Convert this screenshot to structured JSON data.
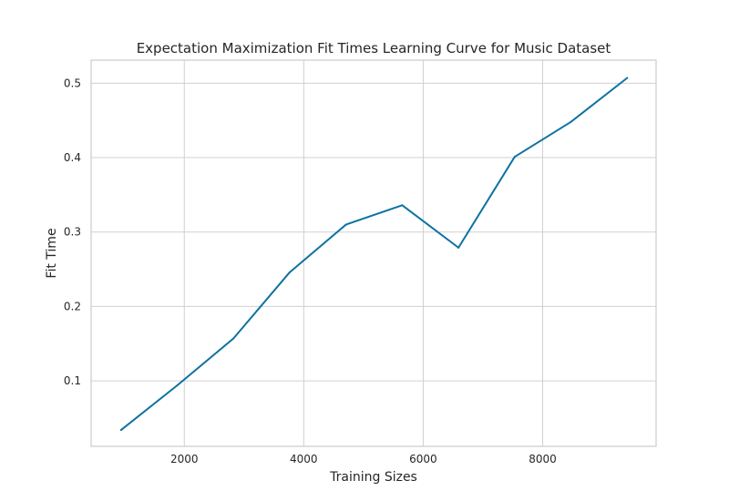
{
  "chart_data": {
    "type": "line",
    "title": "Expectation Maximization Fit Times Learning Curve for Music Dataset",
    "xlabel": "Training Sizes",
    "ylabel": "Fit Time",
    "xlim": [
      440,
      9900
    ],
    "ylim": [
      0.012,
      0.531
    ],
    "xticks": [
      2000,
      4000,
      6000,
      8000
    ],
    "yticks": [
      0.1,
      0.2,
      0.3,
      0.4,
      0.5
    ],
    "xtick_labels": [
      "2000",
      "4000",
      "6000",
      "8000"
    ],
    "ytick_labels": [
      "0.1",
      "0.2",
      "0.3",
      "0.4",
      "0.5"
    ],
    "grid": true,
    "series": [
      {
        "color": "#0e72a1",
        "x": [
          941,
          1883,
          2824,
          3766,
          4708,
          5649,
          6591,
          7532,
          8474,
          9415
        ],
        "y": [
          0.034,
          0.094,
          0.157,
          0.246,
          0.31,
          0.336,
          0.279,
          0.401,
          0.448,
          0.507
        ]
      }
    ]
  }
}
